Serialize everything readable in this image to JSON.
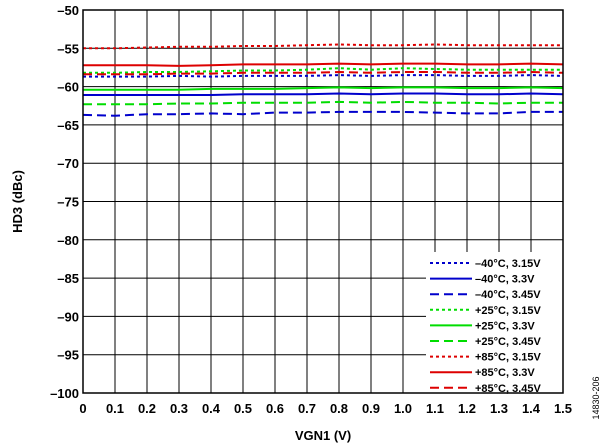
{
  "chart_data": {
    "type": "line",
    "xlabel": "VGN1 (V)",
    "ylabel": "HD3 (dBc)",
    "xlim": [
      0,
      1.5
    ],
    "ylim": [
      -100,
      -50
    ],
    "x_ticks": [
      "0",
      "0.1",
      "0.2",
      "0.3",
      "0.4",
      "0.5",
      "0.6",
      "0.7",
      "0.8",
      "0.9",
      "1.0",
      "1.1",
      "1.2",
      "1.3",
      "1.4",
      "1.5"
    ],
    "y_ticks": [
      "–50",
      "–55",
      "–60",
      "–65",
      "–70",
      "–75",
      "–80",
      "–85",
      "–90",
      "–95",
      "–100"
    ],
    "grid": true,
    "legend_position": "bottom-right",
    "x": [
      0,
      0.1,
      0.2,
      0.3,
      0.4,
      0.5,
      0.6,
      0.7,
      0.8,
      0.9,
      1.0,
      1.1,
      1.2,
      1.3,
      1.4,
      1.5
    ],
    "series": [
      {
        "name": "–40°C, 3.15V",
        "color": "#0000cc",
        "dash": "dotted",
        "values": [
          -58.7,
          -58.7,
          -58.7,
          -58.6,
          -58.7,
          -58.6,
          -58.6,
          -58.6,
          -58.5,
          -58.6,
          -58.5,
          -58.5,
          -58.6,
          -58.6,
          -58.5,
          -58.6
        ]
      },
      {
        "name": "–40°C, 3.3V",
        "color": "#0000cc",
        "dash": "solid",
        "values": [
          -61.1,
          -61.1,
          -61.1,
          -61.1,
          -61.1,
          -61.0,
          -61.0,
          -61.0,
          -60.9,
          -61.0,
          -60.9,
          -60.9,
          -61.0,
          -61.0,
          -60.9,
          -61.0
        ]
      },
      {
        "name": "–40°C, 3.45V",
        "color": "#0000cc",
        "dash": "dashed",
        "values": [
          -63.7,
          -63.8,
          -63.6,
          -63.6,
          -63.5,
          -63.6,
          -63.4,
          -63.4,
          -63.3,
          -63.3,
          -63.3,
          -63.4,
          -63.5,
          -63.5,
          -63.3,
          -63.3
        ]
      },
      {
        "name": "+25°C, 3.15V",
        "color": "#00dd00",
        "dash": "dotted",
        "values": [
          -58.2,
          -58.2,
          -58.1,
          -58.1,
          -58.0,
          -57.9,
          -57.9,
          -57.8,
          -57.6,
          -57.8,
          -57.6,
          -57.7,
          -57.8,
          -57.8,
          -57.8,
          -57.8
        ]
      },
      {
        "name": "+25°C, 3.3V",
        "color": "#00dd00",
        "dash": "solid",
        "values": [
          -60.4,
          -60.4,
          -60.4,
          -60.4,
          -60.3,
          -60.3,
          -60.3,
          -60.2,
          -60.1,
          -60.2,
          -60.1,
          -60.1,
          -60.2,
          -60.2,
          -60.1,
          -60.2
        ]
      },
      {
        "name": "+25°C, 3.45V",
        "color": "#00dd00",
        "dash": "dashed",
        "values": [
          -62.3,
          -62.3,
          -62.3,
          -62.2,
          -62.2,
          -62.1,
          -62.1,
          -62.1,
          -62.0,
          -62.1,
          -62.0,
          -62.1,
          -62.1,
          -62.2,
          -62.1,
          -62.1
        ]
      },
      {
        "name": "+85°C, 3.15V",
        "color": "#dd0000",
        "dash": "dotted",
        "values": [
          -55.0,
          -55.0,
          -54.9,
          -54.8,
          -54.8,
          -54.7,
          -54.7,
          -54.6,
          -54.5,
          -54.6,
          -54.6,
          -54.5,
          -54.6,
          -54.6,
          -54.6,
          -54.6
        ]
      },
      {
        "name": "+85°C, 3.3V",
        "color": "#dd0000",
        "dash": "solid",
        "values": [
          -57.2,
          -57.2,
          -57.2,
          -57.3,
          -57.2,
          -57.1,
          -57.1,
          -57.1,
          -57.0,
          -57.1,
          -57.0,
          -57.0,
          -57.1,
          -57.1,
          -57.0,
          -57.1
        ]
      },
      {
        "name": "+85°C, 3.45V",
        "color": "#dd0000",
        "dash": "dashed",
        "values": [
          -58.4,
          -58.4,
          -58.4,
          -58.3,
          -58.3,
          -58.2,
          -58.2,
          -58.2,
          -58.1,
          -58.2,
          -58.1,
          -58.1,
          -58.2,
          -58.2,
          -58.1,
          -58.2
        ]
      }
    ]
  },
  "figure_id": "14830-206"
}
